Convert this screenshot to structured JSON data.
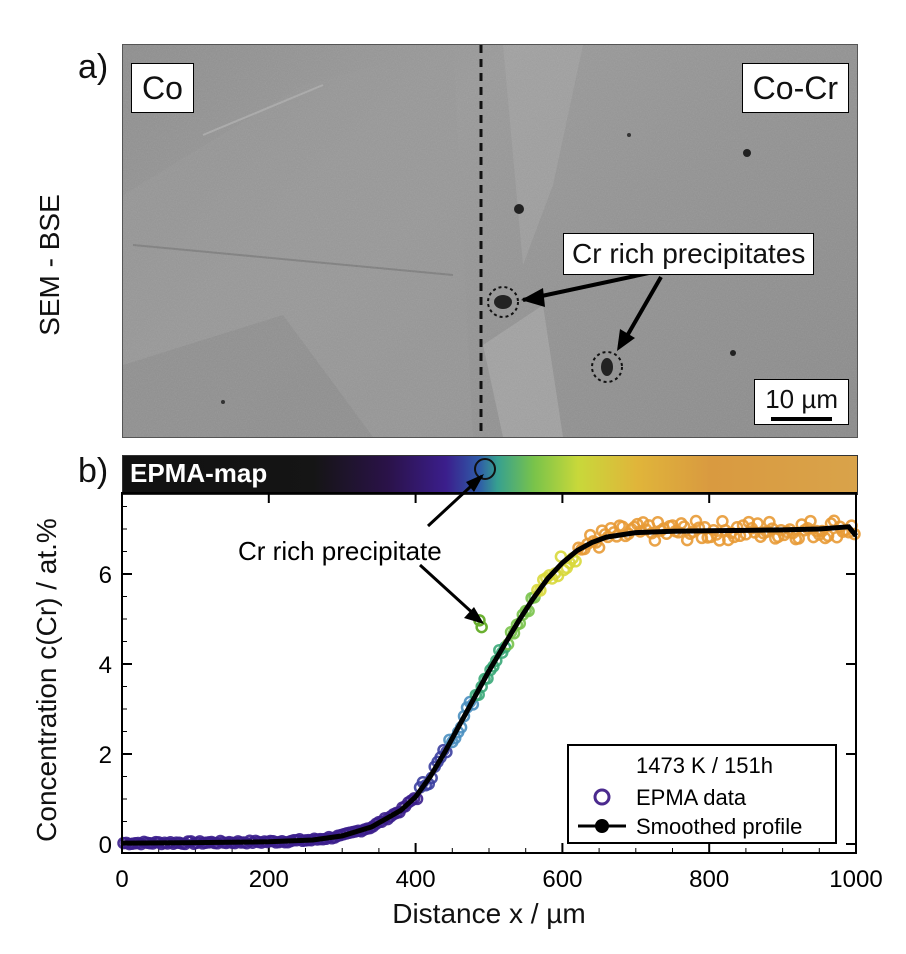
{
  "panel_a": {
    "label": "a)",
    "side_label": "SEM - BSE",
    "left_label": "Co",
    "right_label": "Co-Cr",
    "annotation": "Cr rich precipitates",
    "scale_bar": "10 µm"
  },
  "panel_b": {
    "label": "b)",
    "map_label": "EPMA-map",
    "annotation": "Cr rich precipitate"
  },
  "chart_data": {
    "type": "scatter",
    "title": "",
    "xlabel": "Distance x / µm",
    "ylabel": "Concentration c(Cr) / at.%",
    "xlim": [
      0,
      1000
    ],
    "ylim": [
      -0.2,
      7.8
    ],
    "x_ticks": [
      "0",
      "200",
      "400",
      "600",
      "800",
      "1000"
    ],
    "y_ticks": [
      "0",
      "2",
      "4",
      "6"
    ],
    "legend": {
      "title": "1473 K / 151h",
      "position": "bottom-right",
      "entries": [
        "EPMA data",
        "Smoothed profile"
      ]
    },
    "series": [
      {
        "name": "Smoothed profile",
        "x": [
          0,
          100,
          200,
          260,
          300,
          340,
          380,
          400,
          420,
          440,
          460,
          480,
          500,
          520,
          540,
          560,
          580,
          600,
          620,
          640,
          660,
          700,
          750,
          800,
          850,
          900,
          950,
          990,
          1000
        ],
        "y": [
          0.02,
          0.03,
          0.05,
          0.09,
          0.18,
          0.38,
          0.75,
          1.05,
          1.5,
          2.05,
          2.65,
          3.25,
          3.85,
          4.4,
          4.95,
          5.45,
          5.9,
          6.25,
          6.52,
          6.7,
          6.82,
          6.92,
          6.95,
          6.96,
          6.97,
          6.98,
          7.0,
          7.05,
          6.85
        ]
      },
      {
        "name": "EPMA data",
        "x": [
          487,
          490
        ],
        "y": [
          4.97,
          4.82
        ]
      }
    ],
    "colors": {
      "marker_low": "#3b1e8c",
      "marker_mid": "#79c34a",
      "marker_high": "#e0703a",
      "line": "#000000"
    }
  }
}
